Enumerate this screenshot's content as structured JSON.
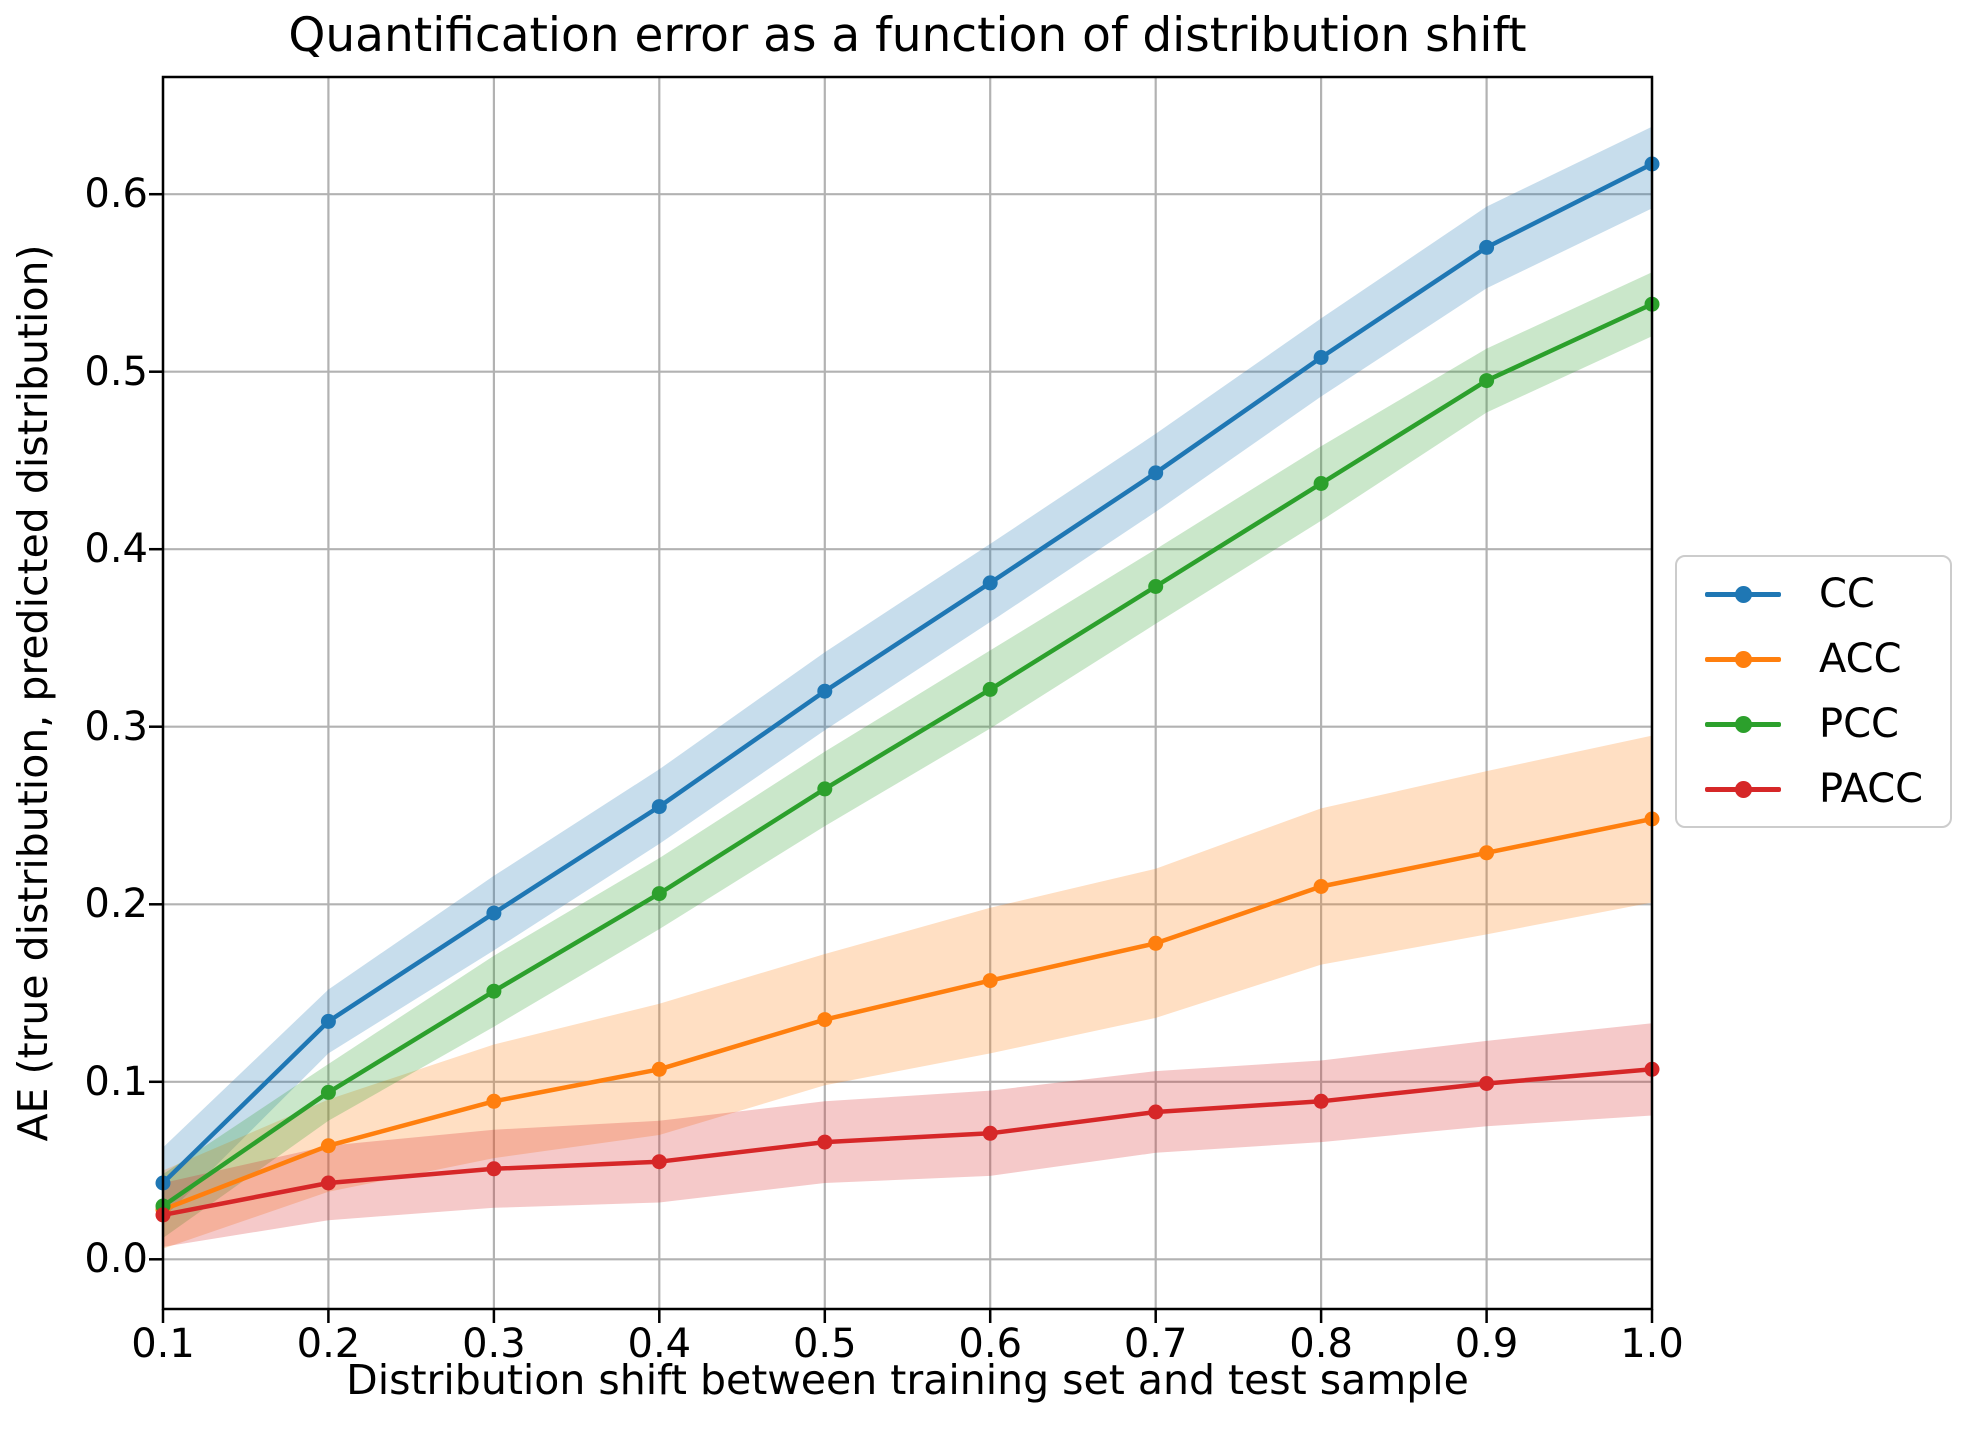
{
  "title": "Quantification error as a function of distribution shift",
  "xlabel": "Distribution shift between training set and test sample",
  "ylabel": "AE (true distribution, predicted distribution)",
  "colors": {
    "background": "#ffffff",
    "grid": "#b2b2b2",
    "spine": "#000000",
    "legend_border": "#cccccc",
    "cc": "#1f77b4",
    "acc": "#ff7f0e",
    "pcc": "#2ca02c",
    "pacc": "#d62728"
  },
  "legend": {
    "items": [
      {
        "label": "CC",
        "color": "#1f77b4"
      },
      {
        "label": "ACC",
        "color": "#ff7f0e"
      },
      {
        "label": "PCC",
        "color": "#2ca02c"
      },
      {
        "label": "PACC",
        "color": "#d62728"
      }
    ]
  },
  "chart_data": {
    "type": "line",
    "title": "Quantification error as a function of distribution shift",
    "xlabel": "Distribution shift between training set and test sample",
    "ylabel": "AE (true distribution, predicted distribution)",
    "grid": true,
    "legend_position": "outside center right",
    "xlim": [
      0.1,
      1.0
    ],
    "ylim": [
      -0.028,
      0.666
    ],
    "band_alpha": 0.25,
    "x": [
      0.1,
      0.2,
      0.3,
      0.4,
      0.5,
      0.6,
      0.7,
      0.8,
      0.9,
      1.0
    ],
    "x_ticks": [
      {
        "v": 0.1,
        "label": "0.1"
      },
      {
        "v": 0.2,
        "label": "0.2"
      },
      {
        "v": 0.3,
        "label": "0.3"
      },
      {
        "v": 0.4,
        "label": "0.4"
      },
      {
        "v": 0.5,
        "label": "0.5"
      },
      {
        "v": 0.6,
        "label": "0.6"
      },
      {
        "v": 0.7,
        "label": "0.7"
      },
      {
        "v": 0.8,
        "label": "0.8"
      },
      {
        "v": 0.9,
        "label": "0.9"
      },
      {
        "v": 1.0,
        "label": "1.0"
      }
    ],
    "y_ticks": [
      {
        "v": 0.0,
        "label": "0.0"
      },
      {
        "v": 0.1,
        "label": "0.1"
      },
      {
        "v": 0.2,
        "label": "0.2"
      },
      {
        "v": 0.3,
        "label": "0.3"
      },
      {
        "v": 0.4,
        "label": "0.4"
      },
      {
        "v": 0.5,
        "label": "0.5"
      },
      {
        "v": 0.6,
        "label": "0.6"
      }
    ],
    "series": [
      {
        "name": "CC",
        "color": "#1f77b4",
        "values": [
          0.043,
          0.134,
          0.195,
          0.255,
          0.32,
          0.381,
          0.443,
          0.508,
          0.57,
          0.617
        ],
        "band_lower": [
          0.023,
          0.116,
          0.174,
          0.234,
          0.298,
          0.359,
          0.421,
          0.486,
          0.547,
          0.592
        ],
        "band_upper": [
          0.063,
          0.152,
          0.216,
          0.276,
          0.342,
          0.403,
          0.465,
          0.53,
          0.593,
          0.638
        ]
      },
      {
        "name": "ACC",
        "color": "#ff7f0e",
        "values": [
          0.028,
          0.064,
          0.089,
          0.107,
          0.135,
          0.157,
          0.178,
          0.21,
          0.229,
          0.248
        ],
        "band_lower": [
          0.006,
          0.038,
          0.057,
          0.07,
          0.098,
          0.116,
          0.136,
          0.166,
          0.183,
          0.201
        ],
        "band_upper": [
          0.05,
          0.09,
          0.121,
          0.144,
          0.172,
          0.198,
          0.22,
          0.254,
          0.275,
          0.295
        ]
      },
      {
        "name": "PCC",
        "color": "#2ca02c",
        "values": [
          0.03,
          0.094,
          0.151,
          0.206,
          0.265,
          0.321,
          0.379,
          0.437,
          0.495,
          0.538
        ],
        "band_lower": [
          0.012,
          0.078,
          0.131,
          0.186,
          0.244,
          0.299,
          0.358,
          0.416,
          0.477,
          0.52
        ],
        "band_upper": [
          0.048,
          0.11,
          0.171,
          0.226,
          0.286,
          0.343,
          0.4,
          0.458,
          0.513,
          0.556
        ]
      },
      {
        "name": "PACC",
        "color": "#d62728",
        "values": [
          0.025,
          0.043,
          0.051,
          0.055,
          0.066,
          0.071,
          0.083,
          0.089,
          0.099,
          0.107
        ],
        "band_lower": [
          0.007,
          0.022,
          0.029,
          0.032,
          0.043,
          0.047,
          0.06,
          0.066,
          0.075,
          0.081
        ],
        "band_upper": [
          0.043,
          0.064,
          0.073,
          0.078,
          0.089,
          0.095,
          0.106,
          0.112,
          0.123,
          0.133
        ]
      }
    ]
  }
}
